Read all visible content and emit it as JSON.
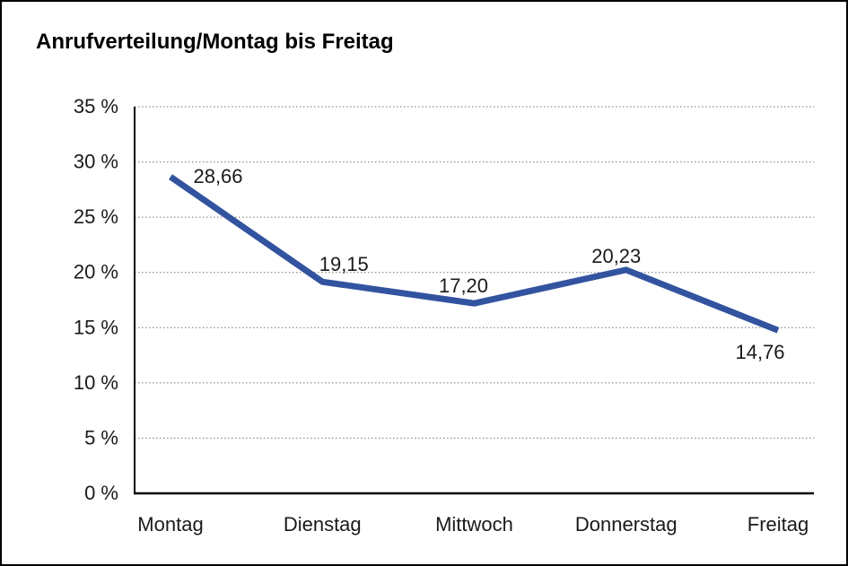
{
  "title": "Anrufverteilung/Montag bis Freitag",
  "colors": {
    "line": "#32539F",
    "grid": "#777777",
    "axis": "#000000",
    "text": "#1a1a1a",
    "background": "#ffffff",
    "border": "#000000"
  },
  "chart_data": {
    "type": "line",
    "title": "Anrufverteilung/Montag bis Freitag",
    "categories": [
      "Montag",
      "Dienstag",
      "Mittwoch",
      "Donnerstag",
      "Freitag"
    ],
    "values": [
      28.66,
      19.15,
      17.2,
      20.23,
      14.76
    ],
    "data_labels": [
      "28,66",
      "19,15",
      "17,20",
      "20,23",
      "14,76"
    ],
    "xlabel": "",
    "ylabel": "",
    "ylim": [
      0,
      35
    ],
    "ytick_step": 5,
    "ytick_labels": [
      "0 %",
      "5 %",
      "10 %",
      "15 %",
      "20 %",
      "25 %",
      "30 %",
      "35 %"
    ],
    "grid": true,
    "grid_style": "dotted",
    "legend": false
  }
}
